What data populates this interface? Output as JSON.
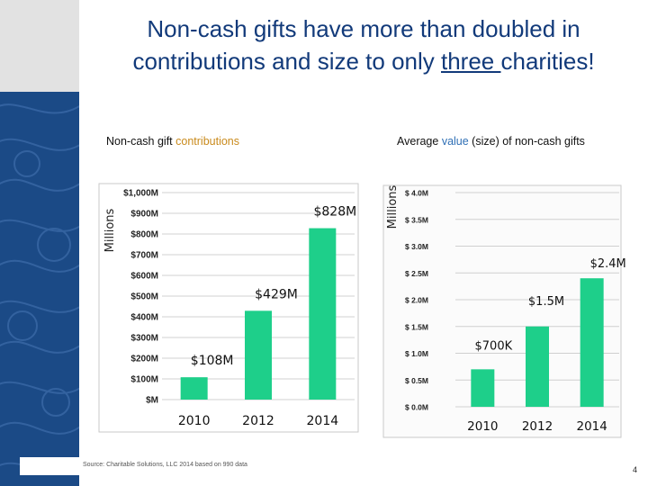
{
  "slide": {
    "title_part1": "Non-cash gifts have more than doubled in contributions and size to only ",
    "title_underlined": "three ",
    "title_part2": "charities!",
    "source": "Source: Charitable Solutions, LLC 2014 based on 990 data",
    "page_number": "4"
  },
  "left_subtitle": {
    "prefix": "Non-cash gift ",
    "accent": "contributions"
  },
  "right_subtitle": {
    "prefix": "Average ",
    "accent": "value",
    "suffix": " (size) of non-cash gifts"
  },
  "colors": {
    "bar": "#1ecf8a",
    "title": "#123a7a",
    "left_strip": "#1b4a86",
    "accent_orange": "#c98a1c",
    "accent_blue": "#2f6fb5"
  },
  "chart_data": [
    {
      "type": "bar",
      "categories": [
        "2010",
        "2012",
        "2014"
      ],
      "values": [
        108,
        429,
        828
      ],
      "data_labels": [
        "$108M",
        "$429M",
        "$828M"
      ],
      "title": "Non-cash gift contributions",
      "ylabel": "Millions",
      "yticks": [
        0,
        100,
        200,
        300,
        400,
        500,
        600,
        700,
        800,
        900,
        1000
      ],
      "ytick_labels": [
        "$M",
        "$100M",
        "$200M",
        "$300M",
        "$400M",
        "$500M",
        "$600M",
        "$700M",
        "$800M",
        "$900M",
        "$1,000M"
      ],
      "ylim": [
        0,
        1000
      ],
      "grid": true,
      "legend": "none"
    },
    {
      "type": "bar",
      "categories": [
        "2010",
        "2012",
        "2014"
      ],
      "values": [
        0.7,
        1.5,
        2.4
      ],
      "data_labels": [
        "$700K",
        "$1.5M",
        "$2.4M"
      ],
      "title": "Average value (size) of non-cash gifts",
      "ylabel": "Millions",
      "yticks": [
        0,
        0.5,
        1.0,
        1.5,
        2.0,
        2.5,
        3.0,
        3.5,
        4.0
      ],
      "ytick_labels": [
        "$ 0.0M",
        "$ 0.5M",
        "$ 1.0M",
        "$ 1.5M",
        "$ 2.0M",
        "$ 2.5M",
        "$ 3.0M",
        "$ 3.5M",
        "$ 4.0M"
      ],
      "ylim": [
        0,
        4
      ],
      "grid": true,
      "legend": "none"
    }
  ]
}
